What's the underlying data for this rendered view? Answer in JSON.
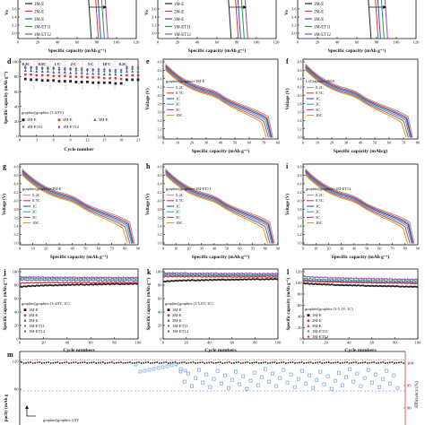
{
  "panels": {
    "a": {
      "xlabel": "Specific capacity (mAh g⁻¹)",
      "ylabel": "Vo",
      "xticks": [
        "0",
        "20",
        "40",
        "60",
        "80",
        "100",
        "120"
      ],
      "yticks": [
        "3.6",
        "3.4",
        "3.2",
        "3.0"
      ],
      "legend": [
        "1M-E",
        "2M-E",
        "3M-E",
        "1M-ET11",
        "1M-ET12"
      ]
    },
    "b": {
      "xlabel": "Specific capacity (mAh g⁻¹)",
      "ylabel": "Vo",
      "xticks": [
        "0",
        "20",
        "40",
        "60",
        "80",
        "100",
        "120"
      ],
      "yticks": [
        "3.6",
        "3.4",
        "3.2",
        "3.0"
      ],
      "legend": [
        "1M-E",
        "2M-E",
        "3M-E",
        "1M-ET11",
        "1M-ET12"
      ]
    },
    "c": {
      "xlabel": "Specific capacity (mAh g⁻¹)",
      "ylabel": "Vo",
      "xticks": [
        "0",
        "20",
        "40",
        "60",
        "80",
        "100",
        "120"
      ],
      "yticks": [
        "3.6",
        "3.4",
        "3.2",
        "3.0"
      ],
      "legend": [
        "1M-E",
        "2M-E",
        "3M-E",
        "1M-ET11",
        "1M-ET12"
      ]
    },
    "d": {
      "label": "d",
      "xlabel": "Cycle number",
      "ylabel": "Specific capacity (mAh g⁻¹)",
      "xticks": [
        "0",
        "3",
        "6",
        "9",
        "12",
        "15",
        "18",
        "21"
      ],
      "yticks": [
        "0",
        "20",
        "40",
        "60",
        "80",
        "100"
      ],
      "rates": [
        "0.2C",
        "0.5C",
        "1 C",
        "2 C",
        "5 C",
        "10 C",
        "0.2C"
      ],
      "note": "graphite||graphite (3-4.9V)",
      "legend": [
        "1M-E",
        "2M-E",
        "3M-E",
        "1M-ET11",
        "1M-ET12"
      ]
    },
    "e": {
      "label": "e",
      "xlabel": "Specific capacity (mAh g⁻¹)",
      "ylabel": "Voltage (V)",
      "xticks": [
        "0",
        "10",
        "20",
        "30",
        "40",
        "50",
        "60",
        "70",
        "80"
      ],
      "yticks": [
        "4.8",
        "4.6",
        "4.4",
        "4.2",
        "4.0",
        "3.8",
        "3.6",
        "3.4",
        "3.2",
        "3.0"
      ],
      "note": "graphite||graphite+1M-E"
    },
    "f": {
      "label": "f",
      "xlabel": "Specific capacity (mAh/g)",
      "ylabel": "Voltage (V)",
      "xticks": [
        "0",
        "10",
        "20",
        "30",
        "40",
        "50",
        "60",
        "70",
        "80"
      ],
      "yticks": [
        "4.8",
        "4.6",
        "4.4",
        "4.2",
        "4.0",
        "3.8",
        "3.6",
        "3.4",
        "3.2",
        "3.0"
      ],
      "note": "Li|Graphite+2M-E"
    },
    "g": {
      "label": "g",
      "xlabel": "Specific capacity (mAh g⁻¹)",
      "ylabel": "Voltage (V)",
      "xticks": [
        "0",
        "10",
        "20",
        "30",
        "40",
        "50",
        "60",
        "70",
        "80",
        "90"
      ],
      "yticks": [
        "4.8",
        "4.6",
        "4.4",
        "4.2",
        "4.0",
        "3.8",
        "3.6",
        "3.4",
        "3.2",
        "3.0"
      ],
      "note": "graphite||graphite+3M-E"
    },
    "h": {
      "label": "h",
      "xlabel": "Specific capacity (mAh g⁻¹)",
      "ylabel": "Voltage (V)",
      "xticks": [
        "0",
        "10",
        "20",
        "30",
        "40",
        "50",
        "60",
        "70",
        "80",
        "90"
      ],
      "yticks": [
        "4.8",
        "4.6",
        "4.4",
        "4.2",
        "4.0",
        "3.8",
        "3.6",
        "3.4",
        "3.2",
        "3.0"
      ],
      "note": "graphite||graphite+1M-ET11"
    },
    "i": {
      "label": "i",
      "xlabel": "Specific capacity (mAh g⁻¹)",
      "ylabel": "Voltage (V)",
      "xticks": [
        "0",
        "10",
        "20",
        "30",
        "40",
        "50",
        "60",
        "70",
        "80",
        "90"
      ],
      "yticks": [
        "4.8",
        "4.6",
        "4.4",
        "4.2",
        "4.0",
        "3.8",
        "3.6",
        "3.4",
        "3.2",
        "3.0"
      ],
      "note": "graphite||graphite+1M-ET12"
    },
    "j": {
      "label": "j",
      "xlabel": "Cycle numbers",
      "ylabel": "Specific capacity (mAh g⁻¹)",
      "xticks": [
        "0",
        "20",
        "40",
        "60",
        "80",
        "100"
      ],
      "yticks": [
        "0",
        "20",
        "40",
        "60",
        "80",
        "100"
      ],
      "note": "graphite||graphite (3-4.9V, 1C)",
      "legend": [
        "1M-E",
        "2M-E",
        "3M-E",
        "1M-ET11",
        "1M-ET12"
      ]
    },
    "k": {
      "label": "k",
      "xlabel": "Cycle numbers",
      "ylabel": "Specific capacity (mAh g⁻¹)",
      "xticks": [
        "0",
        "20",
        "40",
        "60",
        "80",
        "100"
      ],
      "yticks": [
        "0",
        "20",
        "40",
        "60",
        "80",
        "100"
      ],
      "note": "graphite||graphite (3-5.0V, 1C)",
      "legend": [
        "1M-E",
        "2M-E",
        "3M-E",
        "1M-ET11",
        "1M-ET12"
      ]
    },
    "l": {
      "label": "l",
      "xlabel": "Cycle numbers",
      "ylabel": "Specific capacity (mAh g⁻¹)",
      "xticks": [
        "0",
        "20",
        "40",
        "60",
        "80",
        "100"
      ],
      "yticks": [
        "0",
        "20",
        "40",
        "60",
        "80",
        "100",
        "120"
      ],
      "note": "graphite||graphite (3-5.1V, 1C)",
      "legend": [
        "1M-E",
        "2M-E",
        "3M-E",
        "1M-ET11",
        "1M-ET12"
      ]
    },
    "m": {
      "label": "m",
      "ylabel_left": "pacity (mAh g",
      "ylabel_right": "Efficiency (%)",
      "yticks_left": [
        "120",
        "80"
      ],
      "yticks_right": [
        "100",
        "95",
        "90"
      ],
      "note": "graphite||graphite 4.9V"
    }
  },
  "rate_legend": [
    "0.2C",
    "0.5C",
    "1C",
    "2C",
    "5C",
    "10C"
  ],
  "colors": {
    "E1": "#222222",
    "E2": "#e8322c",
    "E3": "#2f4fd8",
    "ET11": "#1f9d3a",
    "ET12": "#9b3fc8",
    "rate02": "#9a9a9a",
    "rate05": "#e8322c",
    "rate1": "#2f4fd8",
    "rate2": "#27a9a4",
    "rate5": "#c8487e",
    "rate10": "#d4a017",
    "efficiency": "#e8322c",
    "bluesq": "#3c7fe0"
  },
  "chart_data": [
    {
      "panel": "d",
      "type": "scatter",
      "x": [
        1,
        2,
        3,
        4,
        5,
        6,
        7,
        8,
        9,
        10,
        11,
        12,
        13,
        14,
        15,
        16,
        17,
        18,
        19,
        20,
        21
      ],
      "xlim": [
        0,
        21
      ],
      "ylim": [
        0,
        100
      ],
      "series": [
        {
          "name": "1M-E",
          "values": [
            77,
            76,
            76,
            75,
            75,
            75,
            74,
            74,
            74,
            73,
            73,
            73,
            72,
            72,
            72,
            72,
            71,
            71,
            76,
            76,
            76
          ]
        },
        {
          "name": "2M-E",
          "values": [
            83,
            83,
            82,
            82,
            82,
            81,
            81,
            81,
            80,
            80,
            80,
            79,
            79,
            79,
            78,
            78,
            78,
            77,
            82,
            82,
            82
          ]
        },
        {
          "name": "3M-E",
          "values": [
            88,
            88,
            87,
            87,
            87,
            86,
            86,
            86,
            85,
            85,
            85,
            84,
            84,
            84,
            83,
            83,
            83,
            82,
            87,
            87,
            87
          ]
        },
        {
          "name": "1M-ET11",
          "values": [
            91,
            91,
            90,
            90,
            90,
            90,
            89,
            89,
            89,
            88,
            88,
            88,
            88,
            87,
            87,
            87,
            86,
            86,
            90,
            90,
            90
          ]
        },
        {
          "name": "1M-ET12",
          "values": [
            93,
            93,
            93,
            92,
            92,
            92,
            92,
            91,
            91,
            91,
            91,
            90,
            90,
            90,
            90,
            89,
            89,
            89,
            93,
            93,
            93
          ]
        }
      ]
    },
    {
      "panel": "e-i",
      "type": "line",
      "xlim_e_f": [
        0,
        80
      ],
      "xlim_g_h_i": [
        0,
        90
      ],
      "ylim": [
        3.0,
        4.9
      ],
      "series": [
        {
          "name": "0.2C"
        },
        {
          "name": "0.5C"
        },
        {
          "name": "1C"
        },
        {
          "name": "2C"
        },
        {
          "name": "5C"
        },
        {
          "name": "10C"
        }
      ]
    },
    {
      "panel": "j",
      "type": "scatter",
      "xlim": [
        0,
        100
      ],
      "ylim": [
        0,
        100
      ],
      "series": [
        {
          "name": "1M-E",
          "start": 77,
          "end": 82
        },
        {
          "name": "2M-E",
          "start": 83,
          "end": 84
        },
        {
          "name": "3M-E",
          "start": 88,
          "end": 87
        },
        {
          "name": "1M-ET11",
          "start": 90,
          "end": 89
        },
        {
          "name": "1M-ET12",
          "start": 92,
          "end": 91
        }
      ]
    },
    {
      "panel": "k",
      "type": "scatter",
      "xlim": [
        0,
        100
      ],
      "ylim": [
        0,
        100
      ],
      "series": [
        {
          "name": "1M-E",
          "start": 85,
          "end": 89
        },
        {
          "name": "2M-E",
          "start": 93,
          "end": 92
        },
        {
          "name": "3M-E",
          "start": 95,
          "end": 94
        },
        {
          "name": "1M-ET11",
          "start": 96,
          "end": 95
        },
        {
          "name": "1M-ET12",
          "start": 98,
          "end": 97
        }
      ]
    },
    {
      "panel": "l",
      "type": "scatter",
      "xlim": [
        0,
        100
      ],
      "ylim": [
        0,
        120
      ],
      "series": [
        {
          "name": "1M-E",
          "start": 100,
          "end": 93
        },
        {
          "name": "2M-E",
          "start": 104,
          "end": 99
        },
        {
          "name": "3M-E",
          "start": 106,
          "end": 101
        },
        {
          "name": "1M-ET11",
          "start": 108,
          "end": 103
        },
        {
          "name": "1M-ET12",
          "start": 112,
          "end": 106
        }
      ]
    },
    {
      "panel": "m",
      "type": "scatter",
      "xlim": [
        0,
        100
      ],
      "capacity_level": 120,
      "efficiency_level": 99
    }
  ]
}
